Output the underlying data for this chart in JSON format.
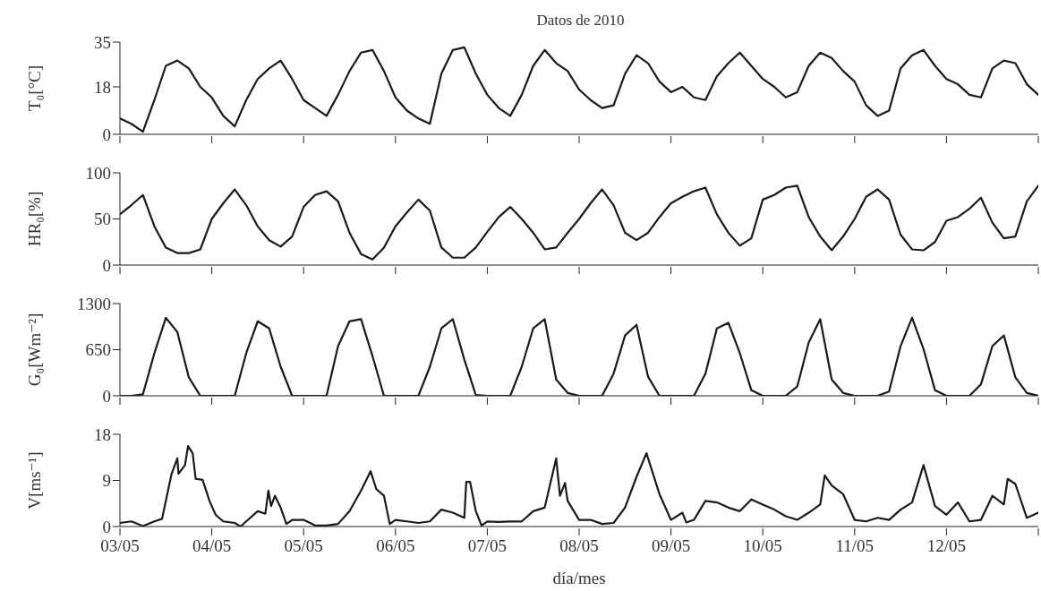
{
  "chart_data": [
    {
      "type": "line",
      "title": "Datos de 2010",
      "ylabel": "T₀[°C]",
      "tick_labels": "y",
      "xlim": [
        "2010-05-03",
        "2010-05-13"
      ],
      "ylim": [
        0,
        35
      ],
      "yticks": [
        0,
        18,
        35
      ],
      "xticks": [
        {
          "value": "2010-05-03",
          "label": null
        },
        {
          "value": "2010-05-04",
          "label": null
        },
        {
          "value": "2010-05-05",
          "label": null
        },
        {
          "value": "2010-05-06",
          "label": null
        },
        {
          "value": "2010-05-07",
          "label": null
        },
        {
          "value": "2010-05-08",
          "label": null
        },
        {
          "value": "2010-05-09",
          "label": null
        },
        {
          "value": "2010-05-10",
          "label": null
        },
        {
          "value": "2010-05-11",
          "label": null
        },
        {
          "value": "2010-05-12",
          "label": null
        },
        {
          "value": "2010-05-13",
          "label": null
        }
      ],
      "x": [
        "2010-05-03T00:00",
        "2010-05-03T03:00",
        "2010-05-03T06:00",
        "2010-05-03T09:00",
        "2010-05-03T12:00",
        "2010-05-03T15:00",
        "2010-05-03T18:00",
        "2010-05-03T21:00",
        "2010-05-04T00:00",
        "2010-05-04T03:00",
        "2010-05-04T06:00",
        "2010-05-04T09:00",
        "2010-05-04T12:00",
        "2010-05-04T15:00",
        "2010-05-04T18:00",
        "2010-05-04T21:00",
        "2010-05-05T00:00",
        "2010-05-05T03:00",
        "2010-05-05T06:00",
        "2010-05-05T09:00",
        "2010-05-05T12:00",
        "2010-05-05T15:00",
        "2010-05-05T18:00",
        "2010-05-05T21:00",
        "2010-05-06T00:00",
        "2010-05-06T03:00",
        "2010-05-06T06:00",
        "2010-05-06T09:00",
        "2010-05-06T12:00",
        "2010-05-06T15:00",
        "2010-05-06T18:00",
        "2010-05-06T21:00",
        "2010-05-07T00:00",
        "2010-05-07T03:00",
        "2010-05-07T06:00",
        "2010-05-07T09:00",
        "2010-05-07T12:00",
        "2010-05-07T15:00",
        "2010-05-07T18:00",
        "2010-05-07T21:00",
        "2010-05-08T00:00",
        "2010-05-08T03:00",
        "2010-05-08T06:00",
        "2010-05-08T09:00",
        "2010-05-08T12:00",
        "2010-05-08T15:00",
        "2010-05-08T18:00",
        "2010-05-08T21:00",
        "2010-05-09T00:00",
        "2010-05-09T03:00",
        "2010-05-09T06:00",
        "2010-05-09T09:00",
        "2010-05-09T12:00",
        "2010-05-09T15:00",
        "2010-05-09T18:00",
        "2010-05-09T21:00",
        "2010-05-10T00:00",
        "2010-05-10T03:00",
        "2010-05-10T06:00",
        "2010-05-10T09:00",
        "2010-05-10T12:00",
        "2010-05-10T15:00",
        "2010-05-10T18:00",
        "2010-05-10T21:00",
        "2010-05-11T00:00",
        "2010-05-11T03:00",
        "2010-05-11T06:00",
        "2010-05-11T09:00",
        "2010-05-11T12:00",
        "2010-05-11T15:00",
        "2010-05-11T18:00",
        "2010-05-11T21:00",
        "2010-05-12T00:00",
        "2010-05-12T03:00",
        "2010-05-12T06:00",
        "2010-05-12T09:00",
        "2010-05-12T12:00",
        "2010-05-12T15:00",
        "2010-05-12T18:00",
        "2010-05-12T21:00",
        "2010-05-13T00:00"
      ],
      "series": [
        {
          "color": "#1a1a1a",
          "values": [
            6,
            4,
            1,
            13,
            26,
            28,
            25,
            18,
            14,
            7,
            3,
            13,
            21,
            25,
            28,
            21,
            13,
            10,
            7,
            15,
            24,
            31,
            32,
            24,
            14,
            9,
            6,
            4,
            23,
            32,
            33,
            23,
            15,
            10,
            7,
            15,
            26,
            32,
            27,
            24,
            17,
            13,
            10,
            11,
            23,
            30,
            27,
            20,
            16,
            18,
            14,
            13,
            22,
            27,
            31,
            26,
            21,
            18,
            14,
            16,
            26,
            31,
            29,
            24,
            20,
            11,
            7,
            9,
            25,
            30,
            32,
            26,
            21,
            19,
            15,
            14,
            25,
            28,
            27,
            19,
            15
          ]
        }
      ]
    },
    {
      "type": "line",
      "ylabel": "HR₀[%]",
      "tick_labels": "y",
      "xlim": [
        "2010-05-03",
        "2010-05-13"
      ],
      "ylim": [
        0,
        100
      ],
      "yticks": [
        0,
        50,
        100
      ],
      "xticks": [
        {
          "value": "2010-05-03",
          "label": null
        },
        {
          "value": "2010-05-04",
          "label": null
        },
        {
          "value": "2010-05-05",
          "label": null
        },
        {
          "value": "2010-05-06",
          "label": null
        },
        {
          "value": "2010-05-07",
          "label": null
        },
        {
          "value": "2010-05-08",
          "label": null
        },
        {
          "value": "2010-05-09",
          "label": null
        },
        {
          "value": "2010-05-10",
          "label": null
        },
        {
          "value": "2010-05-11",
          "label": null
        },
        {
          "value": "2010-05-12",
          "label": null
        },
        {
          "value": "2010-05-13",
          "label": null
        }
      ],
      "x": [
        "2010-05-03T00:00",
        "2010-05-03T03:00",
        "2010-05-03T06:00",
        "2010-05-03T09:00",
        "2010-05-03T12:00",
        "2010-05-03T15:00",
        "2010-05-03T18:00",
        "2010-05-03T21:00",
        "2010-05-04T00:00",
        "2010-05-04T03:00",
        "2010-05-04T06:00",
        "2010-05-04T09:00",
        "2010-05-04T12:00",
        "2010-05-04T15:00",
        "2010-05-04T18:00",
        "2010-05-04T21:00",
        "2010-05-05T00:00",
        "2010-05-05T03:00",
        "2010-05-05T06:00",
        "2010-05-05T09:00",
        "2010-05-05T12:00",
        "2010-05-05T15:00",
        "2010-05-05T18:00",
        "2010-05-05T21:00",
        "2010-05-06T00:00",
        "2010-05-06T03:00",
        "2010-05-06T06:00",
        "2010-05-06T09:00",
        "2010-05-06T12:00",
        "2010-05-06T15:00",
        "2010-05-06T18:00",
        "2010-05-06T21:00",
        "2010-05-07T00:00",
        "2010-05-07T03:00",
        "2010-05-07T06:00",
        "2010-05-07T09:00",
        "2010-05-07T12:00",
        "2010-05-07T15:00",
        "2010-05-07T18:00",
        "2010-05-07T21:00",
        "2010-05-08T00:00",
        "2010-05-08T03:00",
        "2010-05-08T06:00",
        "2010-05-08T09:00",
        "2010-05-08T12:00",
        "2010-05-08T15:00",
        "2010-05-08T18:00",
        "2010-05-08T21:00",
        "2010-05-09T00:00",
        "2010-05-09T03:00",
        "2010-05-09T06:00",
        "2010-05-09T09:00",
        "2010-05-09T12:00",
        "2010-05-09T15:00",
        "2010-05-09T18:00",
        "2010-05-09T21:00",
        "2010-05-10T00:00",
        "2010-05-10T03:00",
        "2010-05-10T06:00",
        "2010-05-10T09:00",
        "2010-05-10T12:00",
        "2010-05-10T15:00",
        "2010-05-10T18:00",
        "2010-05-10T21:00",
        "2010-05-11T00:00",
        "2010-05-11T03:00",
        "2010-05-11T06:00",
        "2010-05-11T09:00",
        "2010-05-11T12:00",
        "2010-05-11T15:00",
        "2010-05-11T18:00",
        "2010-05-11T21:00",
        "2010-05-12T00:00",
        "2010-05-12T03:00",
        "2010-05-12T06:00",
        "2010-05-12T09:00",
        "2010-05-12T12:00",
        "2010-05-12T15:00",
        "2010-05-12T18:00",
        "2010-05-12T21:00",
        "2010-05-13T00:00"
      ],
      "series": [
        {
          "color": "#1a1a1a",
          "values": [
            55,
            65,
            76,
            42,
            19,
            13,
            13,
            17,
            50,
            67,
            82,
            65,
            42,
            27,
            20,
            31,
            63,
            76,
            80,
            69,
            35,
            12,
            6,
            19,
            42,
            57,
            71,
            59,
            19,
            8,
            8,
            19,
            36,
            52,
            63,
            50,
            35,
            17,
            19,
            35,
            50,
            67,
            82,
            65,
            35,
            27,
            35,
            52,
            67,
            74,
            80,
            84,
            55,
            35,
            21,
            29,
            71,
            76,
            84,
            86,
            52,
            31,
            16,
            31,
            50,
            74,
            82,
            71,
            33,
            17,
            16,
            25,
            48,
            52,
            61,
            73,
            46,
            29,
            31,
            69,
            86
          ]
        }
      ]
    },
    {
      "type": "line",
      "ylabel": "G₀[Wm⁻²]",
      "tick_labels": "y",
      "xlim": [
        "2010-05-03",
        "2010-05-13"
      ],
      "ylim": [
        0,
        1300
      ],
      "yticks": [
        0,
        650,
        1300
      ],
      "xticks": [
        {
          "value": "2010-05-03",
          "label": null
        },
        {
          "value": "2010-05-04",
          "label": null
        },
        {
          "value": "2010-05-05",
          "label": null
        },
        {
          "value": "2010-05-06",
          "label": null
        },
        {
          "value": "2010-05-07",
          "label": null
        },
        {
          "value": "2010-05-08",
          "label": null
        },
        {
          "value": "2010-05-09",
          "label": null
        },
        {
          "value": "2010-05-10",
          "label": null
        },
        {
          "value": "2010-05-11",
          "label": null
        },
        {
          "value": "2010-05-12",
          "label": null
        },
        {
          "value": "2010-05-13",
          "label": null
        }
      ],
      "x": [
        "2010-05-03T00:00",
        "2010-05-03T03:00",
        "2010-05-03T06:00",
        "2010-05-03T09:00",
        "2010-05-03T12:00",
        "2010-05-03T15:00",
        "2010-05-03T18:00",
        "2010-05-03T21:00",
        "2010-05-04T00:00",
        "2010-05-04T03:00",
        "2010-05-04T06:00",
        "2010-05-04T09:00",
        "2010-05-04T12:00",
        "2010-05-04T15:00",
        "2010-05-04T18:00",
        "2010-05-04T21:00",
        "2010-05-05T00:00",
        "2010-05-05T03:00",
        "2010-05-05T06:00",
        "2010-05-05T09:00",
        "2010-05-05T12:00",
        "2010-05-05T15:00",
        "2010-05-05T18:00",
        "2010-05-05T21:00",
        "2010-05-06T00:00",
        "2010-05-06T03:00",
        "2010-05-06T06:00",
        "2010-05-06T09:00",
        "2010-05-06T12:00",
        "2010-05-06T15:00",
        "2010-05-06T18:00",
        "2010-05-06T21:00",
        "2010-05-07T00:00",
        "2010-05-07T03:00",
        "2010-05-07T06:00",
        "2010-05-07T09:00",
        "2010-05-07T12:00",
        "2010-05-07T15:00",
        "2010-05-07T18:00",
        "2010-05-07T21:00",
        "2010-05-08T00:00",
        "2010-05-08T03:00",
        "2010-05-08T06:00",
        "2010-05-08T09:00",
        "2010-05-08T12:00",
        "2010-05-08T15:00",
        "2010-05-08T18:00",
        "2010-05-08T21:00",
        "2010-05-09T00:00",
        "2010-05-09T03:00",
        "2010-05-09T06:00",
        "2010-05-09T09:00",
        "2010-05-09T12:00",
        "2010-05-09T15:00",
        "2010-05-09T18:00",
        "2010-05-09T21:00",
        "2010-05-10T00:00",
        "2010-05-10T03:00",
        "2010-05-10T06:00",
        "2010-05-10T09:00",
        "2010-05-10T12:00",
        "2010-05-10T15:00",
        "2010-05-10T18:00",
        "2010-05-10T21:00",
        "2010-05-11T00:00",
        "2010-05-11T03:00",
        "2010-05-11T06:00",
        "2010-05-11T09:00",
        "2010-05-11T12:00",
        "2010-05-11T15:00",
        "2010-05-11T18:00",
        "2010-05-11T21:00",
        "2010-05-12T00:00",
        "2010-05-12T03:00",
        "2010-05-12T06:00",
        "2010-05-12T09:00",
        "2010-05-12T12:00",
        "2010-05-12T15:00",
        "2010-05-12T18:00",
        "2010-05-12T21:00",
        "2010-05-13T00:00"
      ],
      "series": [
        {
          "color": "#1a1a1a",
          "values": [
            0,
            0,
            20,
            600,
            1100,
            900,
            260,
            0,
            0,
            0,
            0,
            600,
            1050,
            950,
            410,
            0,
            0,
            0,
            0,
            700,
            1050,
            1080,
            560,
            0,
            0,
            0,
            0,
            410,
            950,
            1080,
            510,
            10,
            0,
            0,
            0,
            410,
            950,
            1080,
            230,
            40,
            0,
            0,
            0,
            310,
            850,
            1000,
            270,
            0,
            0,
            0,
            0,
            310,
            950,
            1030,
            600,
            80,
            0,
            0,
            0,
            130,
            750,
            1080,
            230,
            40,
            0,
            0,
            0,
            60,
            700,
            1100,
            660,
            80,
            0,
            0,
            0,
            160,
            700,
            850,
            260,
            40,
            0
          ]
        }
      ]
    },
    {
      "type": "line",
      "xlabel": "día/mes",
      "ylabel": "V[ms⁻¹]",
      "xlim": [
        "2010-05-03",
        "2010-05-13"
      ],
      "ylim": [
        0,
        18
      ],
      "yticks": [
        0,
        9,
        18
      ],
      "xticks": [
        {
          "value": "2010-05-03",
          "label": "03/05"
        },
        {
          "value": "2010-05-04",
          "label": "04/05"
        },
        {
          "value": "2010-05-05",
          "label": "05/05"
        },
        {
          "value": "2010-05-06",
          "label": "06/05"
        },
        {
          "value": "2010-05-07",
          "label": "07/05"
        },
        {
          "value": "2010-05-08",
          "label": "08/05"
        },
        {
          "value": "2010-05-09",
          "label": "09/05"
        },
        {
          "value": "2010-05-10",
          "label": "10/05"
        },
        {
          "value": "2010-05-11",
          "label": "11/05"
        },
        {
          "value": "2010-05-12",
          "label": "12/05"
        },
        {
          "value": "2010-05-13",
          "label": null
        }
      ],
      "series": [
        {
          "color": "#1a1a1a",
          "x": [
            "2010-05-03T00:00",
            "2010-05-03T03:00",
            "2010-05-03T06:00",
            "2010-05-03T09:00",
            "2010-05-03T11:00",
            "2010-05-03T13:30",
            "2010-05-03T15:00",
            "2010-05-03T15:18",
            "2010-05-03T17:00",
            "2010-05-03T17:48",
            "2010-05-03T19:00",
            "2010-05-03T19:48",
            "2010-05-03T21:36",
            "2010-05-03T23:24",
            "2010-05-04T01:00",
            "2010-05-04T03:00",
            "2010-05-04T06:00",
            "2010-05-04T07:30",
            "2010-05-04T09:00",
            "2010-05-04T12:00",
            "2010-05-04T14:00",
            "2010-05-04T14:48",
            "2010-05-04T15:30",
            "2010-05-04T16:30",
            "2010-05-04T18:00",
            "2010-05-04T19:30",
            "2010-05-04T21:00",
            "2010-05-05T00:00",
            "2010-05-05T03:00",
            "2010-05-05T06:00",
            "2010-05-05T09:00",
            "2010-05-05T12:00",
            "2010-05-05T15:00",
            "2010-05-05T17:30",
            "2010-05-05T19:00",
            "2010-05-05T21:00",
            "2010-05-05T22:30",
            "2010-05-06T00:00",
            "2010-05-06T03:00",
            "2010-05-06T06:00",
            "2010-05-06T09:00",
            "2010-05-06T12:00",
            "2010-05-06T15:00",
            "2010-05-06T18:00",
            "2010-05-06T18:30",
            "2010-05-06T19:30",
            "2010-05-06T21:00",
            "2010-05-06T22:30",
            "2010-05-07T00:00",
            "2010-05-07T03:00",
            "2010-05-07T06:00",
            "2010-05-07T09:00",
            "2010-05-07T12:00",
            "2010-05-07T15:00",
            "2010-05-07T18:00",
            "2010-05-07T19:00",
            "2010-05-07T20:18",
            "2010-05-07T21:00",
            "2010-05-08T00:00",
            "2010-05-08T03:00",
            "2010-05-08T06:00",
            "2010-05-08T09:00",
            "2010-05-08T12:00",
            "2010-05-08T15:00",
            "2010-05-08T17:36",
            "2010-05-08T21:00",
            "2010-05-09T00:00",
            "2010-05-09T03:00",
            "2010-05-09T04:00",
            "2010-05-09T06:00",
            "2010-05-09T09:00",
            "2010-05-09T12:00",
            "2010-05-09T15:00",
            "2010-05-09T18:00",
            "2010-05-09T21:00",
            "2010-05-10T00:00",
            "2010-05-10T03:00",
            "2010-05-10T06:00",
            "2010-05-10T09:00",
            "2010-05-10T12:00",
            "2010-05-10T15:00",
            "2010-05-10T16:12",
            "2010-05-10T18:00",
            "2010-05-10T21:00",
            "2010-05-11T00:00",
            "2010-05-11T03:00",
            "2010-05-11T06:00",
            "2010-05-11T09:00",
            "2010-05-11T12:00",
            "2010-05-11T15:00",
            "2010-05-11T18:00",
            "2010-05-11T21:00",
            "2010-05-12T00:00",
            "2010-05-12T03:00",
            "2010-05-12T06:00",
            "2010-05-12T09:00",
            "2010-05-12T12:00",
            "2010-05-12T15:00",
            "2010-05-12T16:00",
            "2010-05-12T18:00",
            "2010-05-12T21:00",
            "2010-05-13T00:00"
          ],
          "values": [
            0.7,
            1,
            0.1,
            1,
            1.5,
            10.3,
            13.3,
            10.3,
            12,
            15.7,
            14.3,
            9.3,
            9.1,
            5,
            2.3,
            1,
            0.7,
            0,
            1,
            3,
            2.5,
            7,
            4,
            6,
            3.7,
            0.5,
            1.3,
            1.3,
            0.2,
            0.2,
            0.5,
            3,
            7,
            10.8,
            7.3,
            6,
            0.5,
            1.3,
            1,
            0.7,
            1,
            3.3,
            2.7,
            1.7,
            8.7,
            8.7,
            3,
            0.2,
            1,
            0.9,
            1,
            1,
            3,
            3.7,
            13.3,
            6,
            8.5,
            5,
            1.3,
            1.3,
            0.5,
            0.7,
            3.7,
            9.7,
            14.3,
            6.3,
            1.3,
            2.7,
            0.8,
            1.3,
            5,
            4.7,
            3.7,
            3,
            5.3,
            4.3,
            3.3,
            2,
            1.3,
            2.7,
            4.3,
            10,
            8,
            6.3,
            1.3,
            1,
            1.7,
            1.3,
            3.3,
            4.7,
            12,
            4,
            2.3,
            4.7,
            1,
            1.3,
            6,
            4.3,
            9.3,
            8.3,
            1.7,
            2.7
          ]
        }
      ]
    }
  ]
}
